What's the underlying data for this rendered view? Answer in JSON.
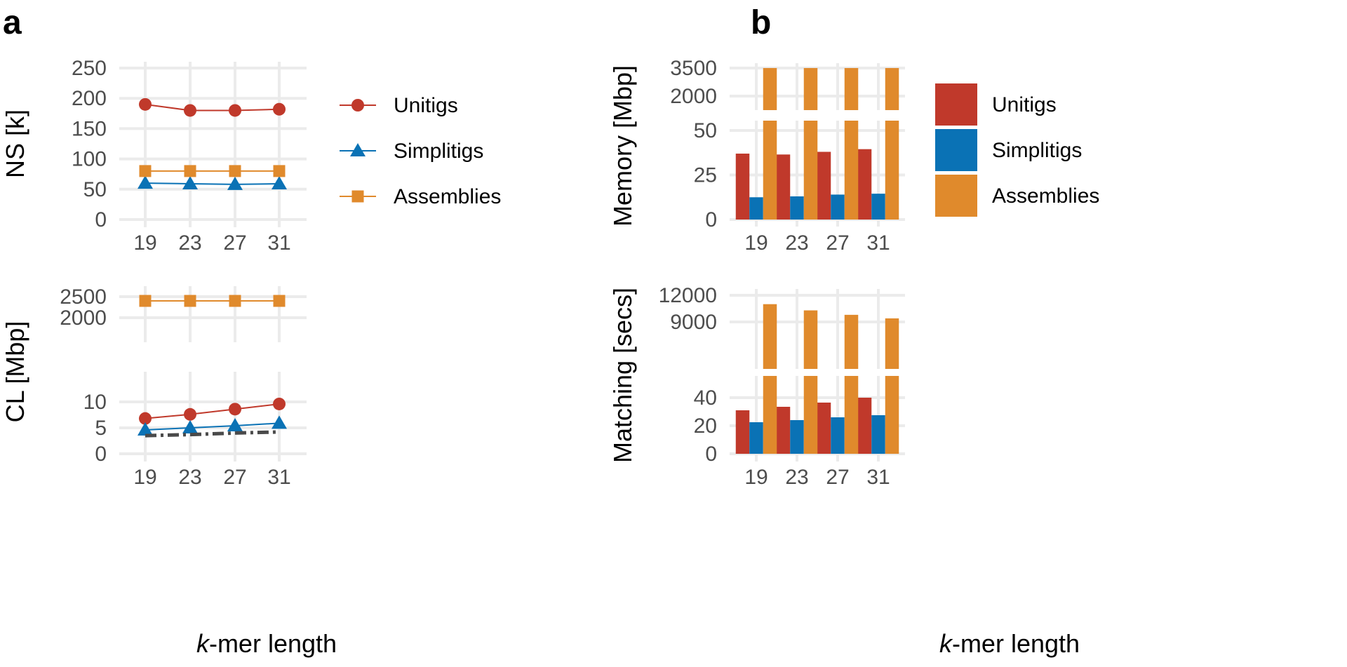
{
  "panel_labels": {
    "a": "a",
    "b": "b"
  },
  "series_names": [
    "Unitigs",
    "Simplitigs",
    "Assemblies"
  ],
  "colors": {
    "unitigs": "#c0392b",
    "simplitigs": "#0a72b5",
    "assemblies": "#e08a2c",
    "dash": "#4a4a4a",
    "grid": "#ebebeb",
    "tick": "#4d4d4d"
  },
  "legend_a": [
    "Unitigs",
    "Simplitigs",
    "Assemblies"
  ],
  "legend_b": [
    "Unitigs",
    "Simplitigs",
    "Assemblies"
  ],
  "xlabel_a": {
    "k": "k",
    "rest": "-mer length"
  },
  "xlabel_b": {
    "k": "k",
    "rest": "-mer length"
  },
  "chart_data": [
    {
      "id": "a-top",
      "type": "line",
      "ylabel": "NS [k]",
      "x": [
        19,
        23,
        27,
        31
      ],
      "xticks": [
        "19",
        "23",
        "27",
        "31"
      ],
      "ylim": [
        0,
        250
      ],
      "yticks": [
        0,
        50,
        100,
        150,
        200,
        250
      ],
      "series": [
        {
          "name": "Unitigs",
          "marker": "circle",
          "values": [
            190,
            180,
            180,
            182
          ]
        },
        {
          "name": "Simplitigs",
          "marker": "triangle",
          "values": [
            60,
            59,
            58,
            59
          ]
        },
        {
          "name": "Assemblies",
          "marker": "square",
          "values": [
            80,
            80,
            80,
            80
          ]
        }
      ]
    },
    {
      "id": "a-bottom",
      "type": "line",
      "ylabel": "CL [Mbp]",
      "x": [
        19,
        23,
        27,
        31
      ],
      "xticks": [
        "19",
        "23",
        "27",
        "31"
      ],
      "broken_axis": true,
      "ylim_lower": [
        0,
        13
      ],
      "yticks_lower": [
        0,
        5,
        10
      ],
      "ylim_upper": [
        1900,
        2600
      ],
      "yticks_upper": [
        2000,
        2500
      ],
      "series": [
        {
          "name": "Unitigs",
          "marker": "circle",
          "values": [
            6.8,
            7.6,
            8.6,
            9.6
          ]
        },
        {
          "name": "Simplitigs",
          "marker": "triangle",
          "values": [
            4.6,
            5.0,
            5.4,
            5.9
          ]
        },
        {
          "name": "Assemblies",
          "marker": "square",
          "values": [
            2400,
            2400,
            2400,
            2400
          ]
        },
        {
          "marker": "none",
          "dashed": true,
          "values": [
            3.5,
            3.7,
            4.0,
            4.2
          ]
        }
      ]
    },
    {
      "id": "b-top",
      "type": "bar",
      "ylabel": "Memory [Mbp]",
      "categories": [
        "19",
        "23",
        "27",
        "31"
      ],
      "broken_axis": true,
      "ylim_lower": [
        0,
        56
      ],
      "yticks_lower": [
        0,
        25,
        50
      ],
      "ylim_upper": [
        1500,
        3600
      ],
      "yticks_upper": [
        2000,
        3500
      ],
      "series": [
        {
          "name": "Unitigs",
          "values": [
            37,
            36.5,
            38,
            39.5
          ]
        },
        {
          "name": "Simplitigs",
          "values": [
            12.5,
            13,
            14,
            14.5
          ]
        },
        {
          "name": "Assemblies",
          "values": [
            3500,
            3500,
            3500,
            3500
          ]
        }
      ]
    },
    {
      "id": "b-bottom",
      "type": "bar",
      "ylabel": "Matching [secs]",
      "categories": [
        "19",
        "23",
        "27",
        "31"
      ],
      "broken_axis": true,
      "ylim_lower": [
        0,
        52
      ],
      "yticks_lower": [
        0,
        20,
        40
      ],
      "ylim_upper": [
        6000,
        12200
      ],
      "yticks_upper": [
        9000,
        12000
      ],
      "series": [
        {
          "name": "Unitigs",
          "values": [
            31,
            33.5,
            36.5,
            40
          ]
        },
        {
          "name": "Simplitigs",
          "values": [
            22.5,
            24,
            26,
            27.5
          ]
        },
        {
          "name": "Assemblies",
          "values": [
            11000,
            10300,
            9800,
            9400
          ]
        }
      ]
    }
  ]
}
